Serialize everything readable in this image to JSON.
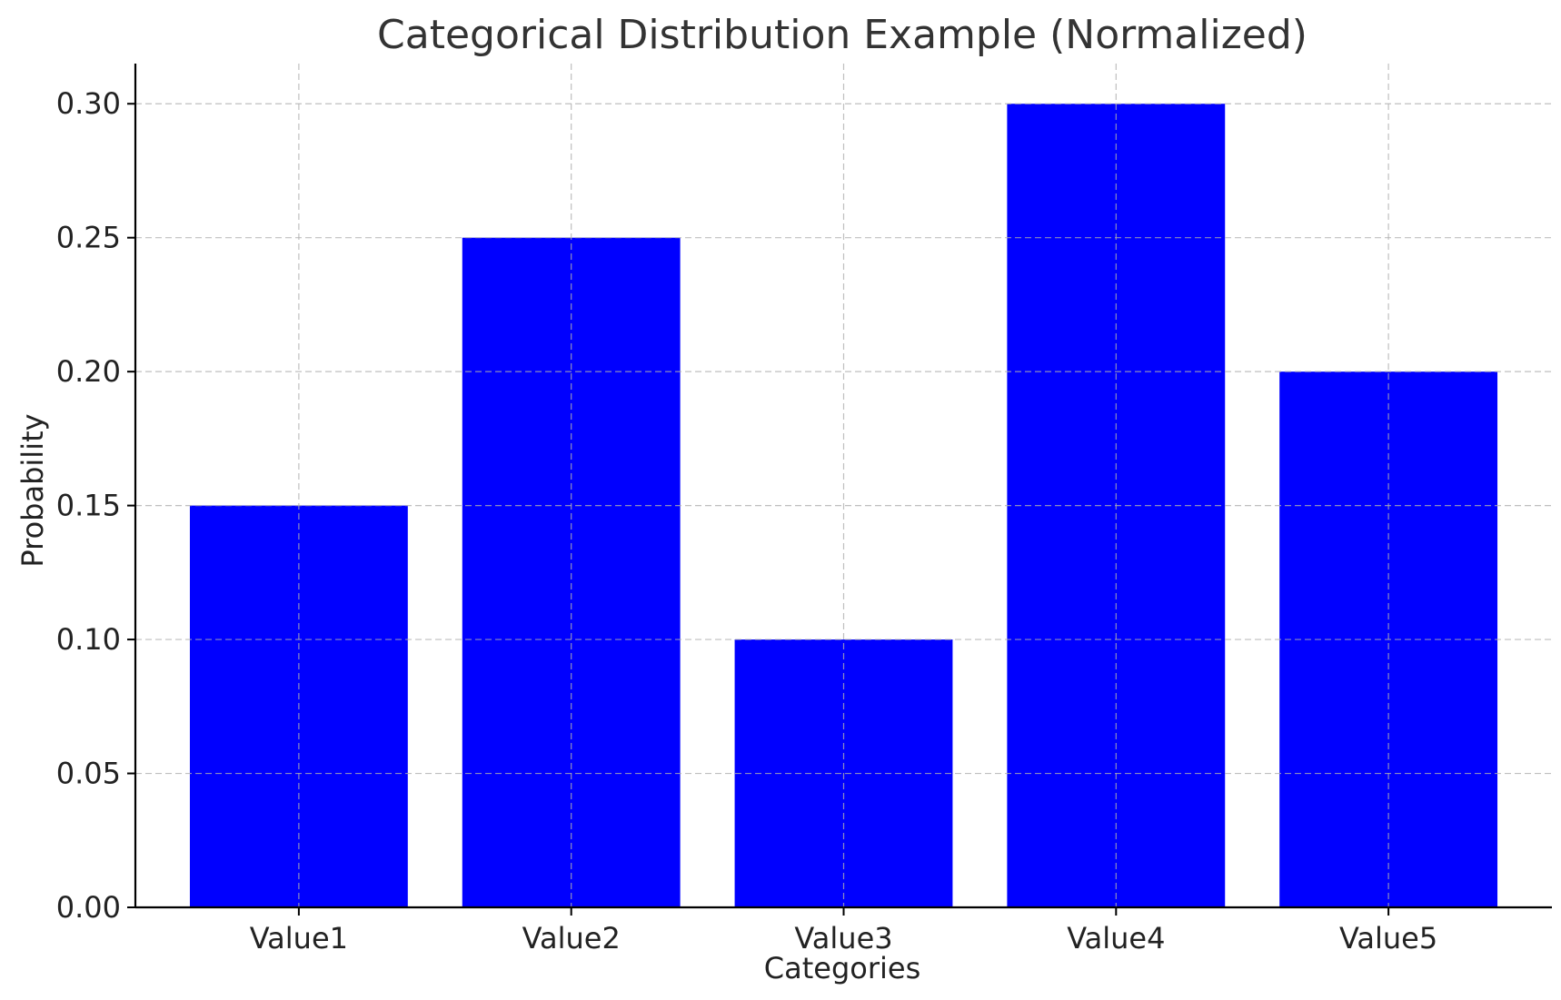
{
  "chart_data": {
    "type": "bar",
    "title": "Categorical Distribution Example (Normalized)",
    "xlabel": "Categories",
    "ylabel": "Probability",
    "categories": [
      "Value1",
      "Value2",
      "Value3",
      "Value4",
      "Value5"
    ],
    "values": [
      0.15,
      0.25,
      0.1,
      0.3,
      0.2
    ],
    "ylim": [
      0,
      0.315
    ],
    "yticks": [
      0.0,
      0.05,
      0.1,
      0.15,
      0.2,
      0.25,
      0.3
    ],
    "ytick_labels": [
      "0.00",
      "0.05",
      "0.10",
      "0.15",
      "0.20",
      "0.25",
      "0.30"
    ],
    "grid": true,
    "legend": "none",
    "colors": {
      "bar": "#0000ff",
      "grid": "#b0b0b0",
      "axis": "#000000",
      "title": "#333333"
    }
  }
}
